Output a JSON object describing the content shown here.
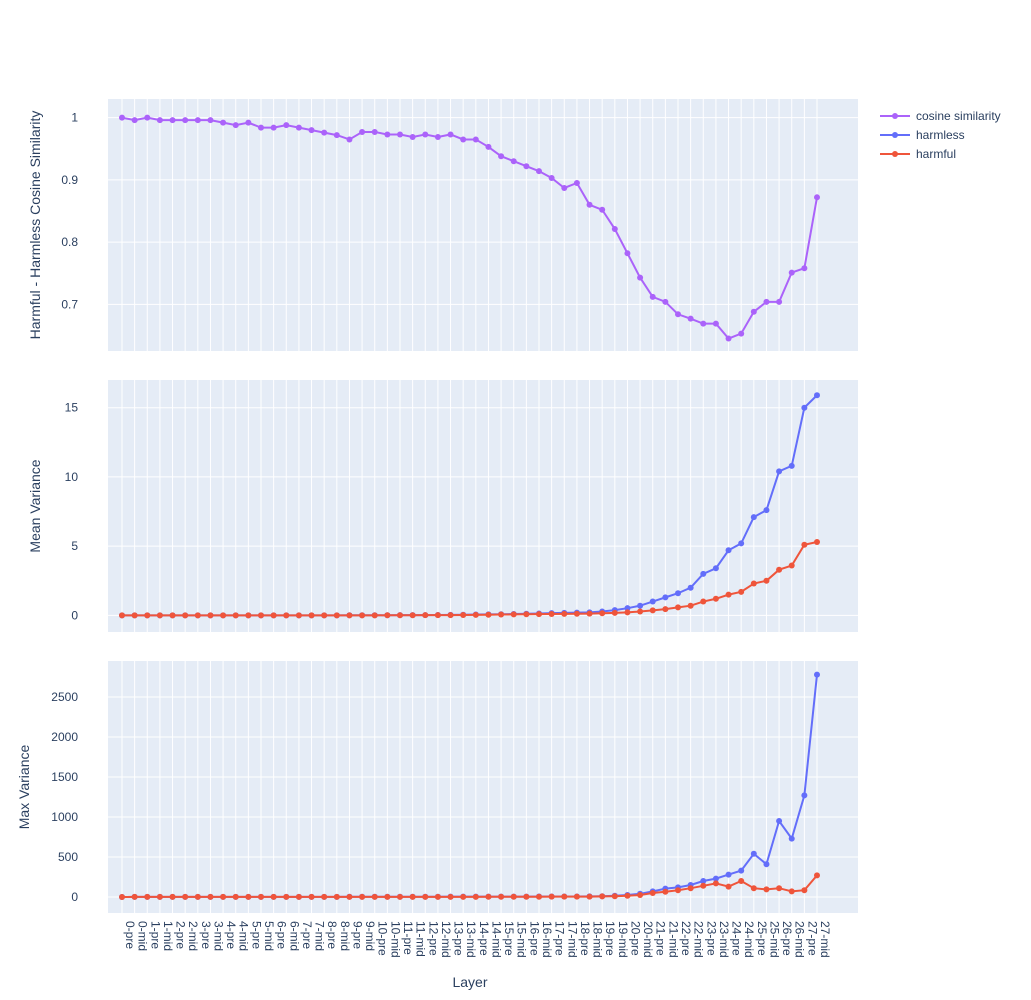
{
  "chart_data": {
    "type": "line",
    "x_title": "Layer",
    "x": [
      "0-pre",
      "0-mid",
      "1-pre",
      "1-mid",
      "2-pre",
      "2-mid",
      "3-pre",
      "3-mid",
      "4-pre",
      "4-mid",
      "5-pre",
      "5-mid",
      "6-pre",
      "6-mid",
      "7-pre",
      "7-mid",
      "8-pre",
      "8-mid",
      "9-pre",
      "9-mid",
      "10-pre",
      "10-mid",
      "11-pre",
      "11-mid",
      "12-pre",
      "12-mid",
      "13-pre",
      "13-mid",
      "14-pre",
      "14-mid",
      "15-pre",
      "15-mid",
      "16-pre",
      "16-mid",
      "17-pre",
      "17-mid",
      "18-pre",
      "18-mid",
      "19-pre",
      "19-mid",
      "20-pre",
      "20-mid",
      "21-pre",
      "21-mid",
      "22-pre",
      "22-mid",
      "23-pre",
      "23-mid",
      "24-pre",
      "24-mid",
      "25-pre",
      "25-mid",
      "26-pre",
      "26-mid",
      "27-pre",
      "27-mid"
    ],
    "legend": {
      "position": "top-right",
      "entries": [
        {
          "name": "cosine similarity",
          "color": "#ab63fa"
        },
        {
          "name": "harmless",
          "color": "#636efa"
        },
        {
          "name": "harmful",
          "color": "#ef553b"
        }
      ]
    },
    "panels": [
      {
        "ylabel": "Harmful - Harmless Cosine Similarity",
        "ylim": [
          0.625,
          1.03
        ],
        "yticks": [
          0.7,
          0.8,
          0.9,
          1
        ],
        "ytick_labels": [
          "0.7",
          "0.8",
          "0.9",
          "1"
        ],
        "grid": true,
        "series": [
          {
            "name": "cosine similarity",
            "color": "#ab63fa",
            "values": [
              1.0,
              0.996,
              1.0,
              0.996,
              0.996,
              0.996,
              0.996,
              0.996,
              0.992,
              0.988,
              0.992,
              0.984,
              0.984,
              0.988,
              0.984,
              0.98,
              0.976,
              0.972,
              0.965,
              0.977,
              0.977,
              0.973,
              0.973,
              0.969,
              0.973,
              0.969,
              0.973,
              0.965,
              0.965,
              0.953,
              0.938,
              0.93,
              0.922,
              0.914,
              0.903,
              0.887,
              0.895,
              0.86,
              0.852,
              0.821,
              0.782,
              0.743,
              0.712,
              0.704,
              0.684,
              0.677,
              0.669,
              0.669,
              0.645,
              0.653,
              0.688,
              0.704,
              0.704,
              0.751,
              0.758,
              0.872
            ]
          }
        ]
      },
      {
        "ylabel": "Mean Variance",
        "ylim": [
          -1.2,
          17
        ],
        "yticks": [
          0,
          5,
          10,
          15
        ],
        "ytick_labels": [
          "0",
          "5",
          "10",
          "15"
        ],
        "grid": true,
        "series": [
          {
            "name": "harmless",
            "color": "#636efa",
            "values": [
              0,
              0,
              0,
              0,
              0,
              0,
              0,
              0,
              0,
              0,
              0,
              0,
              0,
              0,
              0,
              0,
              0,
              0,
              0.01,
              0.01,
              0.01,
              0.01,
              0.02,
              0.02,
              0.02,
              0.03,
              0.04,
              0.05,
              0.06,
              0.07,
              0.08,
              0.1,
              0.12,
              0.14,
              0.16,
              0.18,
              0.2,
              0.22,
              0.28,
              0.38,
              0.52,
              0.7,
              1.0,
              1.3,
              1.6,
              2.0,
              3.0,
              3.4,
              4.7,
              5.2,
              7.1,
              7.6,
              10.4,
              10.8,
              15.0,
              15.9
            ]
          },
          {
            "name": "harmful",
            "color": "#ef553b",
            "values": [
              0,
              0,
              0,
              0,
              0,
              0,
              0,
              0,
              0,
              0,
              0,
              0,
              0,
              0,
              0,
              0,
              0,
              0,
              0,
              0,
              0,
              0.01,
              0.01,
              0.01,
              0.02,
              0.02,
              0.02,
              0.03,
              0.04,
              0.05,
              0.06,
              0.07,
              0.08,
              0.09,
              0.1,
              0.11,
              0.12,
              0.13,
              0.15,
              0.18,
              0.22,
              0.28,
              0.36,
              0.45,
              0.58,
              0.7,
              1.0,
              1.2,
              1.5,
              1.7,
              2.3,
              2.5,
              3.3,
              3.6,
              5.1,
              5.3
            ]
          }
        ]
      },
      {
        "ylabel": "Max Variance",
        "ylim": [
          -200,
          2950
        ],
        "yticks": [
          0,
          500,
          1000,
          1500,
          2000,
          2500
        ],
        "ytick_labels": [
          "0",
          "500",
          "1000",
          "1500",
          "2000",
          "2500"
        ],
        "grid": true,
        "series": [
          {
            "name": "harmless",
            "color": "#636efa",
            "values": [
              0,
              1,
              1,
              1,
              1,
              1,
              1,
              1,
              1,
              1,
              2,
              2,
              2,
              2,
              2,
              2,
              2,
              2,
              3,
              3,
              3,
              3,
              3,
              3,
              3,
              3,
              4,
              4,
              4,
              4,
              5,
              5,
              5,
              6,
              6,
              6,
              7,
              8,
              10,
              15,
              25,
              40,
              70,
              105,
              120,
              150,
              200,
              230,
              280,
              330,
              540,
              410,
              950,
              730,
              1270,
              2780
            ]
          },
          {
            "name": "harmful",
            "color": "#ef553b",
            "values": [
              0,
              1,
              1,
              1,
              1,
              1,
              1,
              1,
              1,
              1,
              1,
              1,
              1,
              1,
              1,
              1,
              1,
              1,
              1,
              1,
              2,
              2,
              2,
              2,
              2,
              2,
              2,
              2,
              2,
              3,
              3,
              3,
              3,
              3,
              4,
              4,
              4,
              5,
              8,
              10,
              15,
              25,
              50,
              65,
              85,
              110,
              140,
              170,
              130,
              200,
              110,
              95,
              110,
              70,
              85,
              270
            ]
          }
        ]
      }
    ]
  }
}
